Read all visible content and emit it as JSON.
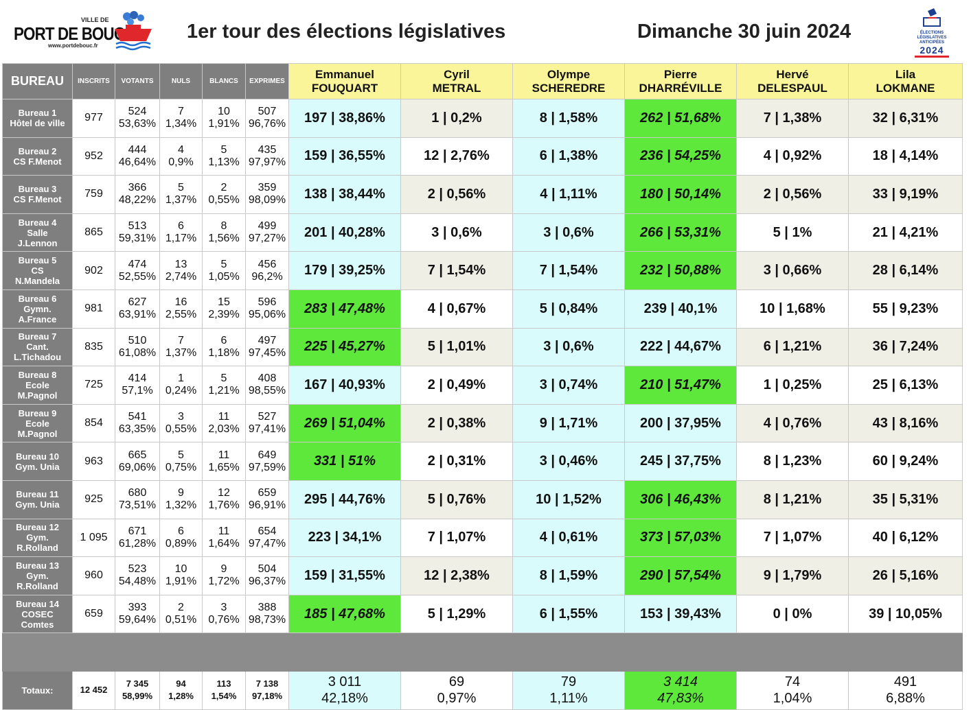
{
  "header": {
    "logo": {
      "ville": "VILLE DE",
      "name": "PORT DE BOUC",
      "url": "www.portdebouc.fr"
    },
    "title": "1er tour des élections législatives",
    "date": "Dimanche 30 juin 2024",
    "elections_logo": {
      "line1": "ÉLECTIONS",
      "line2": "LÉGISLATIVES",
      "line3": "ANTICIPÉES",
      "year": "2024"
    }
  },
  "columns": {
    "bureau": "BUREAU",
    "inscrits": "INSCRITS",
    "votants": "VOTANTS",
    "nuls": "NULS",
    "blancs": "BLANCS",
    "exprimes": "EXPRIMES"
  },
  "candidates": [
    {
      "first": "Emmanuel",
      "last": "FOUQUART"
    },
    {
      "first": "Cyril",
      "last": "METRAL"
    },
    {
      "first": "Olympe",
      "last": "SCHEREDRE"
    },
    {
      "first": "Pierre",
      "last": "DHARRÉVILLE"
    },
    {
      "first": "Hervé",
      "last": "DELESPAUL"
    },
    {
      "first": "Lila",
      "last": "LOKMANE"
    }
  ],
  "rows": [
    {
      "name": [
        "Bureau 1",
        "Hôtel de ville"
      ],
      "inscrits": "977",
      "votants": [
        "524",
        "53,63%"
      ],
      "nuls": [
        "7",
        "1,34%"
      ],
      "blancs": [
        "10",
        "1,91%"
      ],
      "exprimes": [
        "507",
        "96,76%"
      ],
      "cands": [
        "197  |  38,86%",
        "1  |  0,2%",
        "8  |  1,58%",
        "262  |  51,68%",
        "7  |  1,38%",
        "32  |  6,31%"
      ],
      "winner": 3
    },
    {
      "name": [
        "Bureau 2",
        "CS    F.Menot"
      ],
      "inscrits": "952",
      "votants": [
        "444",
        "46,64%"
      ],
      "nuls": [
        "4",
        "0,9%"
      ],
      "blancs": [
        "5",
        "1,13%"
      ],
      "exprimes": [
        "435",
        "97,97%"
      ],
      "cands": [
        "159  |  36,55%",
        "12  |  2,76%",
        "6  |  1,38%",
        "236  |  54,25%",
        "4  |  0,92%",
        "18  |  4,14%"
      ],
      "winner": 3
    },
    {
      "name": [
        "Bureau 3",
        "CS    F.Menot"
      ],
      "inscrits": "759",
      "votants": [
        "366",
        "48,22%"
      ],
      "nuls": [
        "5",
        "1,37%"
      ],
      "blancs": [
        "2",
        "0,55%"
      ],
      "exprimes": [
        "359",
        "98,09%"
      ],
      "cands": [
        "138  |  38,44%",
        "2  |  0,56%",
        "4  |  1,11%",
        "180  |  50,14%",
        "2  |  0,56%",
        "33  |  9,19%"
      ],
      "winner": 3
    },
    {
      "name": [
        "Bureau 4",
        "Salle",
        "J.Lennon"
      ],
      "inscrits": "865",
      "votants": [
        "513",
        "59,31%"
      ],
      "nuls": [
        "6",
        "1,17%"
      ],
      "blancs": [
        "8",
        "1,56%"
      ],
      "exprimes": [
        "499",
        "97,27%"
      ],
      "cands": [
        "201  |  40,28%",
        "3  |  0,6%",
        "3  |  0,6%",
        "266  |  53,31%",
        "5  |  1%",
        "21  |  4,21%"
      ],
      "winner": 3
    },
    {
      "name": [
        "Bureau 5",
        "CS",
        "N.Mandela"
      ],
      "inscrits": "902",
      "votants": [
        "474",
        "52,55%"
      ],
      "nuls": [
        "13",
        "2,74%"
      ],
      "blancs": [
        "5",
        "1,05%"
      ],
      "exprimes": [
        "456",
        "96,2%"
      ],
      "cands": [
        "179  |  39,25%",
        "7  |  1,54%",
        "7  |  1,54%",
        "232  |  50,88%",
        "3  |  0,66%",
        "28  |  6,14%"
      ],
      "winner": 3
    },
    {
      "name": [
        "Bureau 6",
        "Gymn.",
        "A.France"
      ],
      "inscrits": "981",
      "votants": [
        "627",
        "63,91%"
      ],
      "nuls": [
        "16",
        "2,55%"
      ],
      "blancs": [
        "15",
        "2,39%"
      ],
      "exprimes": [
        "596",
        "95,06%"
      ],
      "cands": [
        "283  |  47,48%",
        "4  |  0,67%",
        "5  |  0,84%",
        "239  |  40,1%",
        "10  |  1,68%",
        "55  |  9,23%"
      ],
      "winner": 0
    },
    {
      "name": [
        "Bureau 7",
        "Cant.",
        "L.Tichadou"
      ],
      "inscrits": "835",
      "votants": [
        "510",
        "61,08%"
      ],
      "nuls": [
        "7",
        "1,37%"
      ],
      "blancs": [
        "6",
        "1,18%"
      ],
      "exprimes": [
        "497",
        "97,45%"
      ],
      "cands": [
        "225  |  45,27%",
        "5  |  1,01%",
        "3  |  0,6%",
        "222  |  44,67%",
        "6  |  1,21%",
        "36  |  7,24%"
      ],
      "winner": 0
    },
    {
      "name": [
        "Bureau 8",
        "Ecole",
        "M.Pagnol"
      ],
      "inscrits": "725",
      "votants": [
        "414",
        "57,1%"
      ],
      "nuls": [
        "1",
        "0,24%"
      ],
      "blancs": [
        "5",
        "1,21%"
      ],
      "exprimes": [
        "408",
        "98,55%"
      ],
      "cands": [
        "167  |  40,93%",
        "2  |  0,49%",
        "3  |  0,74%",
        "210  |  51,47%",
        "1  |  0,25%",
        "25  |  6,13%"
      ],
      "winner": 3
    },
    {
      "name": [
        "Bureau 9",
        "Ecole",
        "M.Pagnol"
      ],
      "inscrits": "854",
      "votants": [
        "541",
        "63,35%"
      ],
      "nuls": [
        "3",
        "0,55%"
      ],
      "blancs": [
        "11",
        "2,03%"
      ],
      "exprimes": [
        "527",
        "97,41%"
      ],
      "cands": [
        "269  |  51,04%",
        "2  |  0,38%",
        "9  |  1,71%",
        "200  |  37,95%",
        "4  |  0,76%",
        "43  |  8,16%"
      ],
      "winner": 0
    },
    {
      "name": [
        "Bureau 10",
        "Gym. Unia"
      ],
      "inscrits": "963",
      "votants": [
        "665",
        "69,06%"
      ],
      "nuls": [
        "5",
        "0,75%"
      ],
      "blancs": [
        "11",
        "1,65%"
      ],
      "exprimes": [
        "649",
        "97,59%"
      ],
      "cands": [
        "331  |  51%",
        "2  |  0,31%",
        "3  |  0,46%",
        "245  |  37,75%",
        "8  |  1,23%",
        "60  |  9,24%"
      ],
      "winner": 0
    },
    {
      "name": [
        "Bureau 11",
        "Gym. Unia"
      ],
      "inscrits": "925",
      "votants": [
        "680",
        "73,51%"
      ],
      "nuls": [
        "9",
        "1,32%"
      ],
      "blancs": [
        "12",
        "1,76%"
      ],
      "exprimes": [
        "659",
        "96,91%"
      ],
      "cands": [
        "295  |  44,76%",
        "5  |  0,76%",
        "10  |  1,52%",
        "306  |  46,43%",
        "8  |  1,21%",
        "35  |  5,31%"
      ],
      "winner": 3
    },
    {
      "name": [
        "Bureau 12",
        "Gym.",
        "R.Rolland"
      ],
      "inscrits": "1 095",
      "votants": [
        "671",
        "61,28%"
      ],
      "nuls": [
        "6",
        "0,89%"
      ],
      "blancs": [
        "11",
        "1,64%"
      ],
      "exprimes": [
        "654",
        "97,47%"
      ],
      "cands": [
        "223  |  34,1%",
        "7  |  1,07%",
        "4  |  0,61%",
        "373  |  57,03%",
        "7  |  1,07%",
        "40  |  6,12%"
      ],
      "winner": 3
    },
    {
      "name": [
        "Bureau 13",
        "Gym.",
        "R.Rolland"
      ],
      "inscrits": "960",
      "votants": [
        "523",
        "54,48%"
      ],
      "nuls": [
        "10",
        "1,91%"
      ],
      "blancs": [
        "9",
        "1,72%"
      ],
      "exprimes": [
        "504",
        "96,37%"
      ],
      "cands": [
        "159  |  31,55%",
        "12  |  2,38%",
        "8  |  1,59%",
        "290  |  57,54%",
        "9  |  1,79%",
        "26  |  5,16%"
      ],
      "winner": 3
    },
    {
      "name": [
        "Bureau 14",
        "COSEC",
        "Comtes"
      ],
      "inscrits": "659",
      "votants": [
        "393",
        "59,64%"
      ],
      "nuls": [
        "2",
        "0,51%"
      ],
      "blancs": [
        "3",
        "0,76%"
      ],
      "exprimes": [
        "388",
        "98,73%"
      ],
      "cands": [
        "185  |  47,68%",
        "5  |  1,29%",
        "6  |  1,55%",
        "153  |  39,43%",
        "0  |  0%",
        "39  |  10,05%"
      ],
      "winner": 0
    }
  ],
  "totals": {
    "label": "Totaux:",
    "inscrits": "12 452",
    "votants": [
      "7 345",
      "58,99%"
    ],
    "nuls": [
      "94",
      "1,28%"
    ],
    "blancs": [
      "113",
      "1,54%"
    ],
    "exprimes": [
      "7 138",
      "97,18%"
    ],
    "cands": [
      [
        "3 011",
        "42,18%"
      ],
      [
        "69",
        "0,97%"
      ],
      [
        "79",
        "1,11%"
      ],
      [
        "3 414",
        "47,83%"
      ],
      [
        "74",
        "1,04%"
      ],
      [
        "491",
        "6,88%"
      ]
    ],
    "winner": 3
  },
  "colors": {
    "winner": "#5fe83c",
    "candidate_header": "#fbf59a",
    "cyan": "#d9fbfb",
    "shade": "#efefe6",
    "label_bg": "#7f7f7f"
  }
}
